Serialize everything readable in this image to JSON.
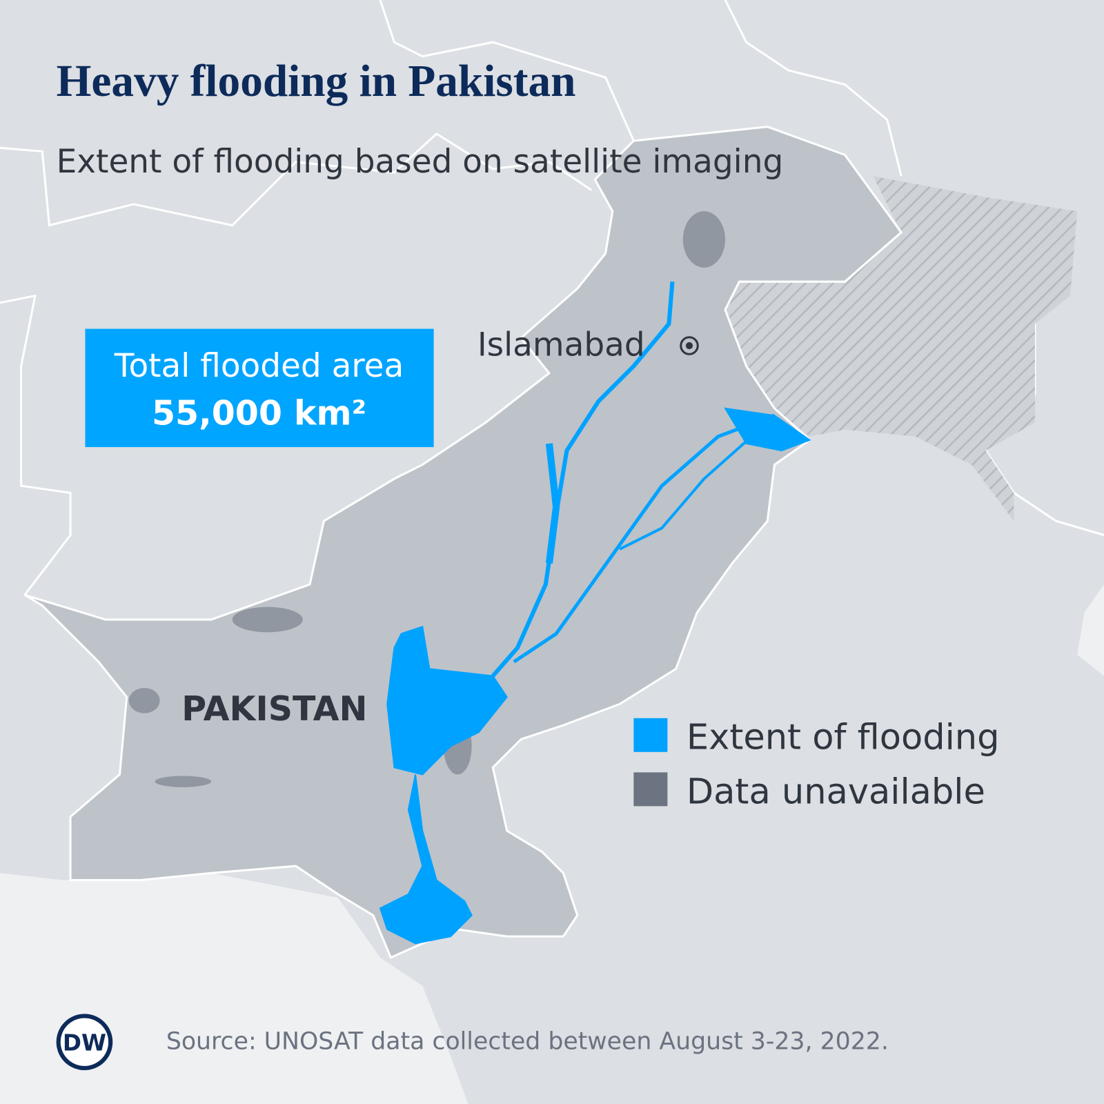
{
  "header": {
    "title": "Heavy flooding in Pakistan",
    "subtitle": "Extent of flooding based on satellite imaging"
  },
  "callout": {
    "label": "Total flooded area",
    "value": "55,000 km²"
  },
  "map": {
    "capital": "Islamabad",
    "country": "PAKISTAN"
  },
  "legend": {
    "items": [
      {
        "label": "Extent of flooding",
        "color": "#00a2ff"
      },
      {
        "label": "Data unavailable",
        "color": "#6b7480"
      }
    ]
  },
  "footer": {
    "source": "Source: UNOSAT data collected between August 3-23, 2022.",
    "logo": "DW"
  }
}
